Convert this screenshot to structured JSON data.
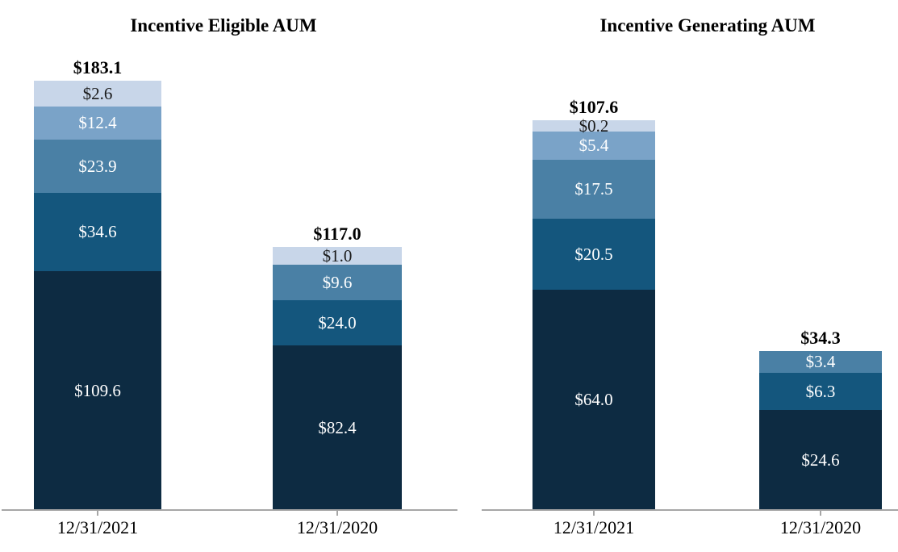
{
  "palette": {
    "c1": "#c8d6e9",
    "c2": "#7aa3c8",
    "c3": "#4a80a5",
    "c4": "#14567d",
    "c5": "#0d2b42",
    "axis": "#a6a6a6",
    "label_on_light": "#1a1a1a",
    "label_on_dark": "#ffffff",
    "background": "#ffffff"
  },
  "chart_data": [
    {
      "type": "bar",
      "stacked": true,
      "title": "Incentive Eligible AUM",
      "categories": [
        "12/31/2021",
        "12/31/2020"
      ],
      "legend": "none",
      "y_axis": "hidden",
      "grid": false,
      "segment_order": "top_to_bottom",
      "bars": [
        {
          "category": "12/31/2021",
          "total": 183.1,
          "total_label": "$183.1",
          "segments": [
            {
              "label": "$2.6",
              "value": 2.6,
              "color": "c1"
            },
            {
              "label": "$12.4",
              "value": 12.4,
              "color": "c2"
            },
            {
              "label": "$23.9",
              "value": 23.9,
              "color": "c3"
            },
            {
              "label": "$34.6",
              "value": 34.6,
              "color": "c4"
            },
            {
              "label": "$109.6",
              "value": 109.6,
              "color": "c5"
            }
          ]
        },
        {
          "category": "12/31/2020",
          "total": 117.0,
          "total_label": "$117.0",
          "segments": [
            {
              "label": "$1.0",
              "value": 1.0,
              "color": "c1"
            },
            {
              "label": "$9.6",
              "value": 9.6,
              "color": "c3"
            },
            {
              "label": "$24.0",
              "value": 24.0,
              "color": "c4"
            },
            {
              "label": "$82.4",
              "value": 82.4,
              "color": "c5"
            }
          ]
        }
      ]
    },
    {
      "type": "bar",
      "stacked": true,
      "title": "Incentive Generating AUM",
      "categories": [
        "12/31/2021",
        "12/31/2020"
      ],
      "legend": "none",
      "y_axis": "hidden",
      "grid": false,
      "segment_order": "top_to_bottom",
      "bars": [
        {
          "category": "12/31/2021",
          "total": 107.6,
          "total_label": "$107.6",
          "segments": [
            {
              "label": "$0.2",
              "value": 0.2,
              "color": "c1"
            },
            {
              "label": "$5.4",
              "value": 5.4,
              "color": "c2"
            },
            {
              "label": "$17.5",
              "value": 17.5,
              "color": "c3"
            },
            {
              "label": "$20.5",
              "value": 20.5,
              "color": "c4"
            },
            {
              "label": "$64.0",
              "value": 64.0,
              "color": "c5"
            }
          ]
        },
        {
          "category": "12/31/2020",
          "total": 34.3,
          "total_label": "$34.3",
          "segments": [
            {
              "label": "$3.4",
              "value": 3.4,
              "color": "c3"
            },
            {
              "label": "$6.3",
              "value": 6.3,
              "color": "c4"
            },
            {
              "label": "$24.6",
              "value": 24.6,
              "color": "c5"
            }
          ]
        }
      ]
    }
  ]
}
